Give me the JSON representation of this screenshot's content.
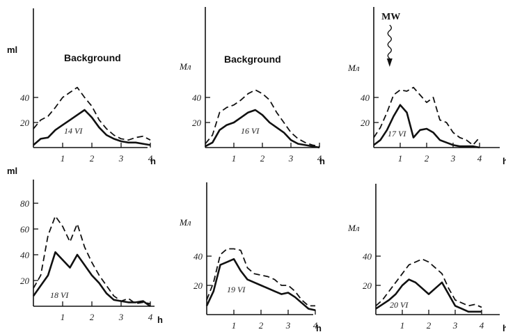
{
  "chart_data": [
    {
      "type": "line",
      "title": "Background",
      "ylabel": "ml",
      "xlabel": "h",
      "date_label": "14 VI",
      "xlim": [
        0,
        4.2
      ],
      "ylim": [
        0,
        50
      ],
      "xticks": [
        "1",
        "2",
        "3",
        "4"
      ],
      "yticks": [
        "20",
        "40"
      ],
      "series": [
        {
          "style": "dashed",
          "x": [
            0,
            0.25,
            0.5,
            0.75,
            1.0,
            1.25,
            1.5,
            1.75,
            2.0,
            2.25,
            2.5,
            2.75,
            3.0,
            3.25,
            3.5,
            3.75,
            4.0
          ],
          "y": [
            15,
            22,
            25,
            32,
            40,
            44,
            48,
            40,
            33,
            22,
            15,
            10,
            7,
            6,
            8,
            9,
            6
          ]
        },
        {
          "style": "solid",
          "x": [
            0,
            0.25,
            0.5,
            0.75,
            1.0,
            1.25,
            1.5,
            1.75,
            2.0,
            2.25,
            2.5,
            2.75,
            3.0,
            3.25,
            3.5,
            3.75,
            4.0
          ],
          "y": [
            2,
            7,
            8,
            14,
            18,
            22,
            26,
            30,
            24,
            16,
            10,
            7,
            5,
            4,
            4,
            3,
            2
          ]
        }
      ]
    },
    {
      "type": "line",
      "title": "Background",
      "ylabel": "Мл",
      "xlabel": "h",
      "date_label": "16 VI",
      "xlim": [
        0,
        4.2
      ],
      "ylim": [
        0,
        50
      ],
      "xticks": [
        "1",
        "2",
        "3",
        "4"
      ],
      "yticks": [
        "20",
        "40"
      ],
      "series": [
        {
          "style": "dashed",
          "x": [
            0,
            0.25,
            0.5,
            0.75,
            1.0,
            1.25,
            1.5,
            1.75,
            2.0,
            2.25,
            2.5,
            2.75,
            3.0,
            3.25,
            3.5,
            3.75,
            4.0
          ],
          "y": [
            3,
            10,
            28,
            32,
            34,
            38,
            43,
            46,
            43,
            38,
            28,
            20,
            12,
            7,
            4,
            2,
            1
          ]
        },
        {
          "style": "solid",
          "x": [
            0,
            0.25,
            0.5,
            0.75,
            1.0,
            1.25,
            1.5,
            1.75,
            2.0,
            2.25,
            2.5,
            2.75,
            3.0,
            3.25,
            3.5,
            3.75,
            4.0
          ],
          "y": [
            1,
            4,
            14,
            18,
            20,
            24,
            28,
            30,
            26,
            20,
            16,
            12,
            6,
            3,
            2,
            1,
            0
          ]
        }
      ]
    },
    {
      "type": "line",
      "title": "",
      "annotation": "MW",
      "ylabel": "Мл",
      "xlabel": "h",
      "date_label": "17 VI",
      "xlim": [
        0,
        4.2
      ],
      "ylim": [
        0,
        50
      ],
      "xticks": [
        "1",
        "2",
        "3",
        "4"
      ],
      "yticks": [
        "20",
        "40"
      ],
      "series": [
        {
          "style": "dashed",
          "x": [
            0,
            0.25,
            0.5,
            0.75,
            1.0,
            1.25,
            1.5,
            1.75,
            2.0,
            2.25,
            2.5,
            2.75,
            3.0,
            3.25,
            3.5,
            3.75,
            4.0
          ],
          "y": [
            8,
            16,
            28,
            42,
            46,
            45,
            48,
            42,
            36,
            40,
            22,
            20,
            12,
            8,
            6,
            2,
            8
          ]
        },
        {
          "style": "solid",
          "x": [
            0,
            0.25,
            0.5,
            0.75,
            1.0,
            1.25,
            1.5,
            1.75,
            2.0,
            2.25,
            2.5,
            2.75,
            3.0,
            3.25,
            3.5,
            3.75,
            4.0
          ],
          "y": [
            2,
            6,
            14,
            25,
            34,
            28,
            8,
            14,
            15,
            12,
            6,
            4,
            2,
            1,
            1,
            1,
            0
          ]
        }
      ]
    },
    {
      "type": "line",
      "title": "",
      "ylabel": "ml",
      "xlabel": "h",
      "date_label": "18 VI",
      "xlim": [
        0,
        4.2
      ],
      "ylim": [
        0,
        90
      ],
      "xticks": [
        "1",
        "2",
        "3",
        "4"
      ],
      "yticks": [
        "20",
        "40",
        "60",
        "80"
      ],
      "series": [
        {
          "style": "dashed",
          "x": [
            0,
            0.25,
            0.5,
            0.75,
            1.0,
            1.25,
            1.5,
            1.75,
            2.0,
            2.25,
            2.5,
            2.75,
            3.0,
            3.25,
            3.5,
            3.75,
            4.0
          ],
          "y": [
            14,
            24,
            55,
            70,
            62,
            50,
            64,
            46,
            34,
            24,
            16,
            8,
            4,
            6,
            2,
            3,
            2
          ]
        },
        {
          "style": "solid",
          "x": [
            0,
            0.25,
            0.5,
            0.75,
            1.0,
            1.25,
            1.5,
            1.75,
            2.0,
            2.25,
            2.5,
            2.75,
            3.0,
            3.25,
            3.5,
            3.75,
            4.0
          ],
          "y": [
            8,
            16,
            24,
            42,
            36,
            30,
            40,
            32,
            24,
            18,
            10,
            5,
            4,
            3,
            3,
            4,
            0
          ]
        }
      ]
    },
    {
      "type": "line",
      "title": "",
      "ylabel": "Мл",
      "xlabel": "h",
      "date_label": "19 VI",
      "xlim": [
        0,
        4.2
      ],
      "ylim": [
        0,
        60
      ],
      "xticks": [
        "1",
        "2",
        "3",
        "4"
      ],
      "yticks": [
        "20",
        "40"
      ],
      "series": [
        {
          "style": "dashed",
          "x": [
            0,
            0.25,
            0.5,
            0.75,
            1.0,
            1.25,
            1.5,
            1.75,
            2.0,
            2.25,
            2.5,
            2.75,
            3.0,
            3.25,
            3.5,
            3.75,
            4.0
          ],
          "y": [
            10,
            22,
            41,
            45,
            45,
            44,
            32,
            28,
            27,
            26,
            24,
            20,
            20,
            16,
            10,
            6,
            6
          ]
        },
        {
          "style": "solid",
          "x": [
            0,
            0.25,
            0.5,
            0.75,
            1.0,
            1.25,
            1.5,
            1.75,
            2.0,
            2.25,
            2.5,
            2.75,
            3.0,
            3.25,
            3.5,
            3.75,
            4.0
          ],
          "y": [
            6,
            16,
            34,
            36,
            38,
            30,
            24,
            22,
            20,
            18,
            16,
            14,
            15,
            12,
            8,
            4,
            3
          ]
        }
      ]
    },
    {
      "type": "line",
      "title": "",
      "ylabel": "Мл",
      "xlabel": "h",
      "date_label": "20 VI",
      "xlim": [
        0,
        4.2
      ],
      "ylim": [
        0,
        60
      ],
      "xticks": [
        "1",
        "2",
        "3",
        "4"
      ],
      "yticks": [
        "20",
        "40"
      ],
      "series": [
        {
          "style": "dashed",
          "x": [
            0,
            0.25,
            0.5,
            0.75,
            1.0,
            1.25,
            1.5,
            1.75,
            2.0,
            2.25,
            2.5,
            2.75,
            3.0,
            3.25,
            3.5,
            3.75,
            4.0
          ],
          "y": [
            6,
            10,
            16,
            22,
            28,
            34,
            36,
            38,
            36,
            32,
            28,
            18,
            10,
            8,
            6,
            7,
            5
          ]
        },
        {
          "style": "solid",
          "x": [
            0,
            0.25,
            0.5,
            0.75,
            1.0,
            1.25,
            1.5,
            1.75,
            2.0,
            2.25,
            2.5,
            2.75,
            3.0,
            3.25,
            3.5,
            3.75,
            4.0
          ],
          "y": [
            4,
            7,
            10,
            14,
            20,
            24,
            22,
            18,
            14,
            18,
            22,
            14,
            6,
            4,
            2,
            2,
            2
          ]
        }
      ]
    }
  ]
}
